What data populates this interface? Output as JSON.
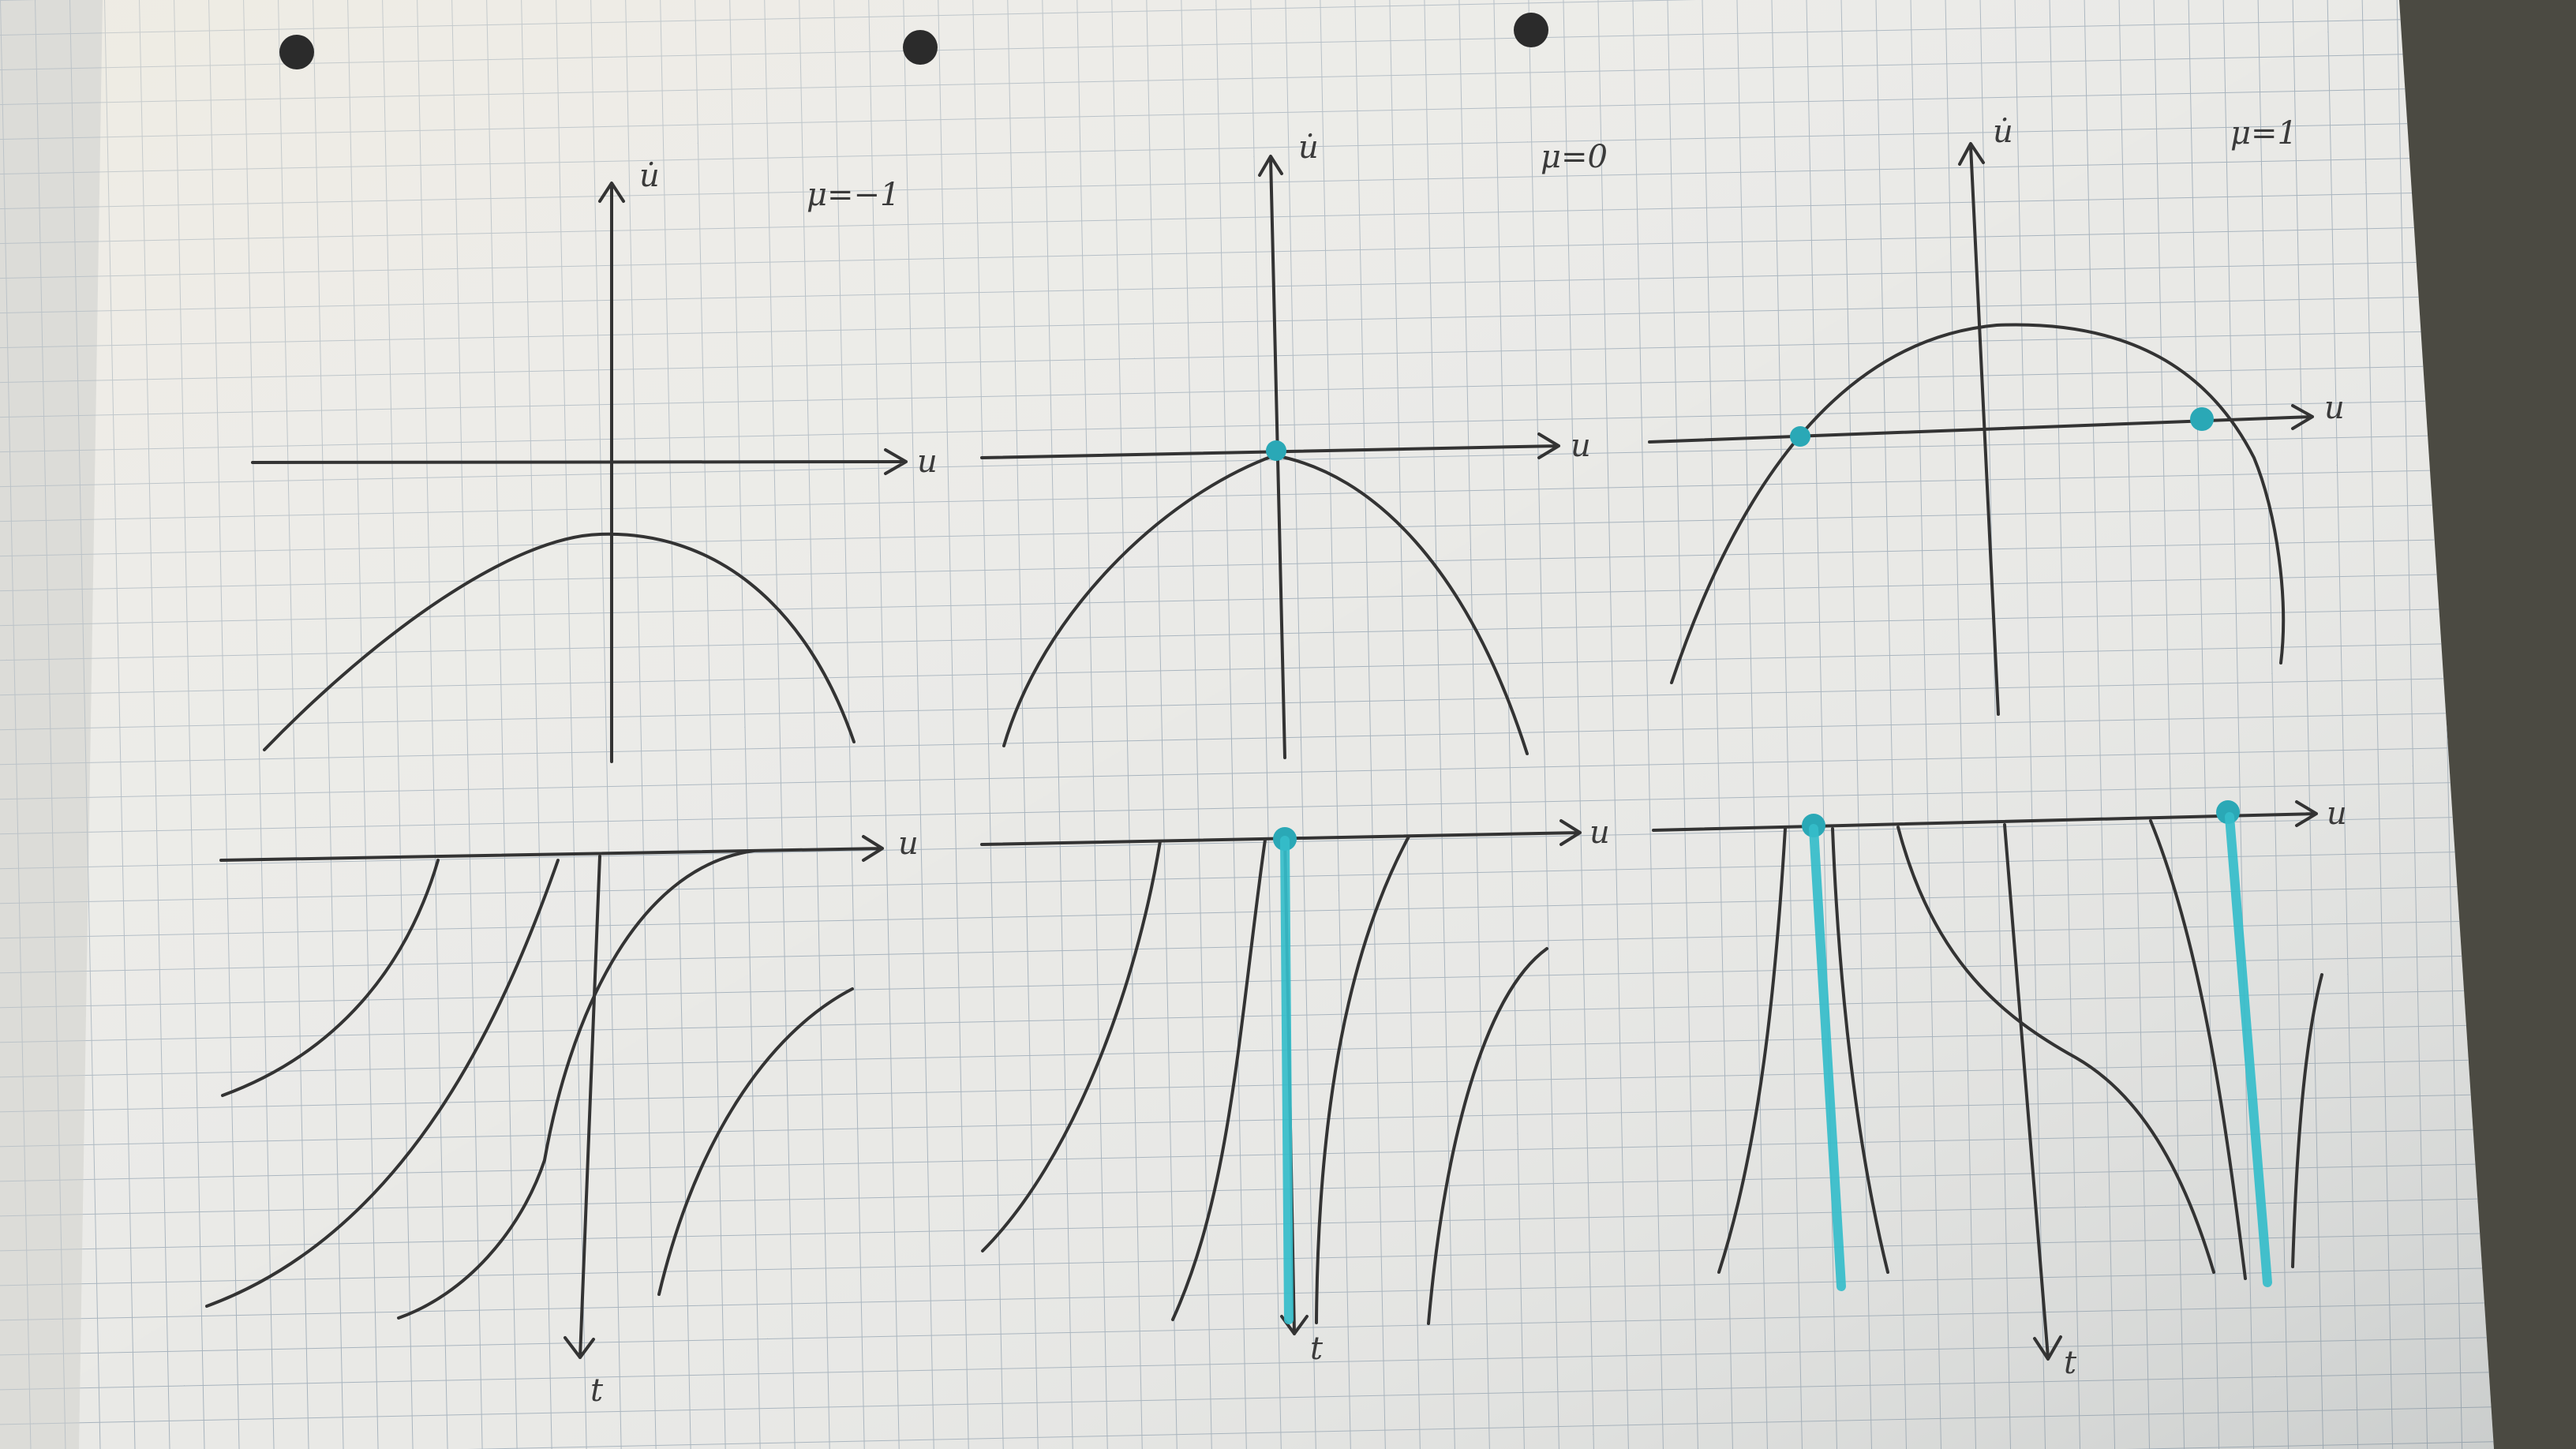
{
  "scene": {
    "kind": "photo of hand-drawn bifurcation diagrams on squared notebook paper",
    "colors": {
      "paper": "#e9e9e6",
      "grid": "#a7b3bd",
      "ink": "#333333",
      "highlight": "#2cb2bf",
      "background_left": "#c8643a",
      "background_right": "#4b4a42"
    }
  },
  "panels": [
    {
      "id": "mu-minus-one",
      "param_label": "μ=−1",
      "phase_plot": {
        "x_axis_label": "u",
        "y_axis_label": "u̇"
      },
      "time_plot": {
        "x_axis_label": "u",
        "t_axis_label": "t"
      }
    },
    {
      "id": "mu-zero",
      "param_label": "μ=0",
      "phase_plot": {
        "x_axis_label": "u",
        "y_axis_label": "u̇"
      },
      "time_plot": {
        "x_axis_label": "u",
        "t_axis_label": "t"
      }
    },
    {
      "id": "mu-plus-one",
      "param_label": "μ=1",
      "phase_plot": {
        "x_axis_label": "u",
        "y_axis_label": "u̇"
      },
      "time_plot": {
        "x_axis_label": "u",
        "t_axis_label": "t"
      }
    }
  ]
}
